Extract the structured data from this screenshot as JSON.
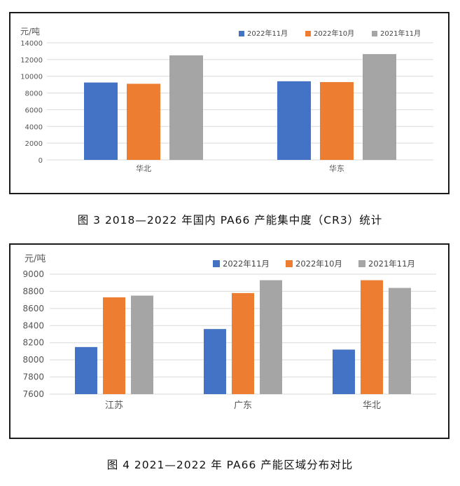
{
  "colors": {
    "series_1": "#4472C4",
    "series_2": "#ED7D31",
    "series_3": "#A5A5A5"
  },
  "chart_data": [
    {
      "type": "bar",
      "ylabel": "元/吨",
      "ylim": [
        0,
        14000
      ],
      "yticks": [
        0,
        2000,
        4000,
        6000,
        8000,
        10000,
        12000,
        14000
      ],
      "categories": [
        "华北",
        "华东"
      ],
      "legend_position": "top-right",
      "grid": true,
      "series": [
        {
          "name": "2022年11月",
          "values": [
            9250,
            9400
          ]
        },
        {
          "name": "2022年10月",
          "values": [
            9100,
            9300
          ]
        },
        {
          "name": "2021年11月",
          "values": [
            12500,
            12650
          ]
        }
      ]
    },
    {
      "type": "bar",
      "ylabel": "元/吨",
      "ylim": [
        7600,
        9000
      ],
      "yticks": [
        7600,
        7800,
        8000,
        8200,
        8400,
        8600,
        8800,
        9000
      ],
      "categories": [
        "江苏",
        "广东",
        "华北"
      ],
      "legend_position": "top-right",
      "grid": true,
      "series": [
        {
          "name": "2022年11月",
          "values": [
            8150,
            8360,
            8120
          ]
        },
        {
          "name": "2022年10月",
          "values": [
            8730,
            8780,
            8930
          ]
        },
        {
          "name": "2021年11月",
          "values": [
            8750,
            8930,
            8840
          ]
        }
      ]
    }
  ],
  "captions": [
    "图 3  2018—2022 年国内 PA66 产能集中度（CR3）统计",
    "图 4  2021—2022 年 PA66 产能区域分布对比"
  ]
}
